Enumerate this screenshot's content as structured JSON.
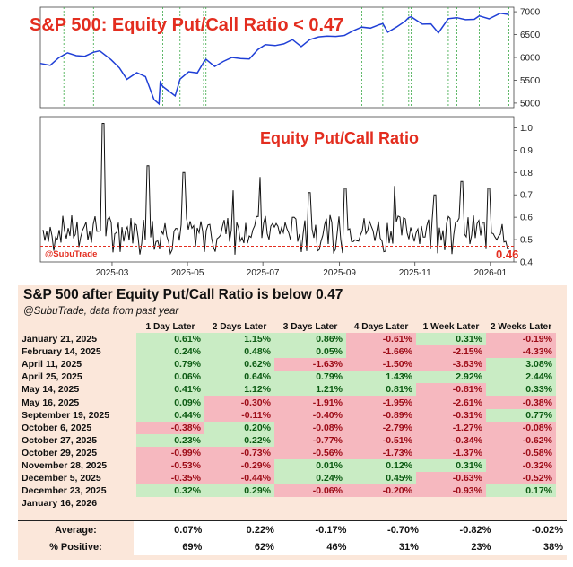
{
  "chart_data": [
    {
      "type": "line",
      "title": "S&P 500: Equity Put/Call Ratio < 0.47",
      "ylim": [
        4900,
        7100
      ],
      "y_ticks": [
        "5000",
        "5500",
        "6000",
        "6500",
        "7000"
      ],
      "series_color": "#1f3fd6",
      "signal_dates": [
        "2025-01-21",
        "2025-02-14",
        "2025-04-11",
        "2025-04-25",
        "2025-05-14",
        "2025-05-16",
        "2025-09-19",
        "2025-10-06",
        "2025-10-27",
        "2025-10-29",
        "2025-11-28",
        "2025-12-05",
        "2025-12-23",
        "2026-01-16"
      ],
      "points": [
        [
          "2025-01-02",
          5868
        ],
        [
          "2025-01-10",
          5827
        ],
        [
          "2025-01-17",
          5997
        ],
        [
          "2025-01-24",
          6101
        ],
        [
          "2025-01-31",
          6040
        ],
        [
          "2025-02-07",
          6026
        ],
        [
          "2025-02-14",
          6114
        ],
        [
          "2025-02-19",
          6144
        ],
        [
          "2025-02-28",
          5955
        ],
        [
          "2025-03-07",
          5770
        ],
        [
          "2025-03-13",
          5521
        ],
        [
          "2025-03-21",
          5667
        ],
        [
          "2025-03-28",
          5580
        ],
        [
          "2025-04-04",
          5074
        ],
        [
          "2025-04-08",
          4982
        ],
        [
          "2025-04-09",
          5456
        ],
        [
          "2025-04-11",
          5363
        ],
        [
          "2025-04-21",
          5158
        ],
        [
          "2025-04-25",
          5525
        ],
        [
          "2025-05-02",
          5686
        ],
        [
          "2025-05-09",
          5660
        ],
        [
          "2025-05-14",
          5892
        ],
        [
          "2025-05-16",
          5958
        ],
        [
          "2025-05-23",
          5802
        ],
        [
          "2025-05-30",
          5911
        ],
        [
          "2025-06-06",
          6000
        ],
        [
          "2025-06-13",
          5977
        ],
        [
          "2025-06-20",
          5967
        ],
        [
          "2025-06-27",
          6173
        ],
        [
          "2025-07-03",
          6279
        ],
        [
          "2025-07-11",
          6260
        ],
        [
          "2025-07-18",
          6297
        ],
        [
          "2025-07-25",
          6389
        ],
        [
          "2025-08-01",
          6238
        ],
        [
          "2025-08-08",
          6389
        ],
        [
          "2025-08-15",
          6449
        ],
        [
          "2025-08-22",
          6466
        ],
        [
          "2025-08-29",
          6460
        ],
        [
          "2025-09-05",
          6481
        ],
        [
          "2025-09-12",
          6584
        ],
        [
          "2025-09-19",
          6664
        ],
        [
          "2025-09-26",
          6643
        ],
        [
          "2025-10-03",
          6715
        ],
        [
          "2025-10-06",
          6740
        ],
        [
          "2025-10-10",
          6552
        ],
        [
          "2025-10-17",
          6664
        ],
        [
          "2025-10-24",
          6791
        ],
        [
          "2025-10-27",
          6875
        ],
        [
          "2025-10-29",
          6890
        ],
        [
          "2025-11-07",
          6728
        ],
        [
          "2025-11-14",
          6734
        ],
        [
          "2025-11-20",
          6538
        ],
        [
          "2025-11-28",
          6849
        ],
        [
          "2025-12-05",
          6870
        ],
        [
          "2025-12-12",
          6827
        ],
        [
          "2025-12-19",
          6834
        ],
        [
          "2025-12-23",
          6909
        ],
        [
          "2025-12-31",
          6845
        ],
        [
          "2026-01-09",
          6966
        ],
        [
          "2026-01-16",
          6940
        ]
      ]
    },
    {
      "type": "line",
      "title": "Equity Put/Call Ratio",
      "ylim": [
        0.4,
        1.05
      ],
      "y_ticks": [
        "0.4",
        "0.5",
        "0.6",
        "0.7",
        "0.8",
        "0.9",
        "1.0"
      ],
      "threshold": 0.47,
      "last_value_label": "0.46",
      "x_ticks": [
        "2025-03",
        "2025-05",
        "2025-07",
        "2025-09",
        "2025-11",
        "2026-01"
      ],
      "watermark": "@SubuTrade"
    }
  ],
  "table": {
    "title": "S&P 500 after Equity Put/Call Ratio is below 0.47",
    "subtitle_handle": "@SubuTrade",
    "subtitle_rest": ", data from past year",
    "columns": [
      "1 Day Later",
      "2 Days Later",
      "3 Days Later",
      "4 Days Later",
      "1 Week Later",
      "2 Weeks Later"
    ],
    "rows": [
      {
        "date": "January 21, 2025",
        "values": [
          "0.61%",
          "1.15%",
          "0.86%",
          "-0.61%",
          "0.31%",
          "-0.19%"
        ]
      },
      {
        "date": "February 14, 2025",
        "values": [
          "0.24%",
          "0.48%",
          "0.05%",
          "-1.66%",
          "-2.15%",
          "-4.33%"
        ]
      },
      {
        "date": "April 11, 2025",
        "values": [
          "0.79%",
          "0.62%",
          "-1.63%",
          "-1.50%",
          "-3.83%",
          "3.08%"
        ]
      },
      {
        "date": "April 25, 2025",
        "values": [
          "0.06%",
          "0.64%",
          "0.79%",
          "1.43%",
          "2.92%",
          "2.44%"
        ]
      },
      {
        "date": "May 14, 2025",
        "values": [
          "0.41%",
          "1.12%",
          "1.21%",
          "0.81%",
          "-0.81%",
          "0.33%"
        ]
      },
      {
        "date": "May 16, 2025",
        "values": [
          "0.09%",
          "-0.30%",
          "-1.91%",
          "-1.95%",
          "-2.61%",
          "-0.38%"
        ]
      },
      {
        "date": "September 19, 2025",
        "values": [
          "0.44%",
          "-0.11%",
          "-0.40%",
          "-0.89%",
          "-0.31%",
          "0.77%"
        ]
      },
      {
        "date": "October 6, 2025",
        "values": [
          "-0.38%",
          "0.20%",
          "-0.08%",
          "-2.79%",
          "-1.27%",
          "-0.08%"
        ]
      },
      {
        "date": "October 27, 2025",
        "values": [
          "0.23%",
          "0.22%",
          "-0.77%",
          "-0.51%",
          "-0.34%",
          "-0.62%"
        ]
      },
      {
        "date": "October 29, 2025",
        "values": [
          "-0.99%",
          "-0.73%",
          "-0.56%",
          "-1.73%",
          "-1.37%",
          "-0.58%"
        ]
      },
      {
        "date": "November 28, 2025",
        "values": [
          "-0.53%",
          "-0.29%",
          "0.01%",
          "0.12%",
          "0.31%",
          "-0.32%"
        ]
      },
      {
        "date": "December 5, 2025",
        "values": [
          "-0.35%",
          "-0.44%",
          "0.24%",
          "0.45%",
          "-0.63%",
          "-0.52%"
        ]
      },
      {
        "date": "December 23, 2025",
        "values": [
          "0.32%",
          "0.29%",
          "-0.06%",
          "-0.20%",
          "-0.93%",
          "0.17%"
        ]
      },
      {
        "date": "January 16, 2026",
        "values": [
          "",
          "",
          "",
          "",
          "",
          ""
        ]
      }
    ],
    "average_label": "Average:",
    "average": [
      "0.07%",
      "0.22%",
      "-0.17%",
      "-0.70%",
      "-0.82%",
      "-0.02%"
    ],
    "positive_label": "% Positive:",
    "positive": [
      "69%",
      "62%",
      "46%",
      "31%",
      "23%",
      "38%"
    ]
  }
}
